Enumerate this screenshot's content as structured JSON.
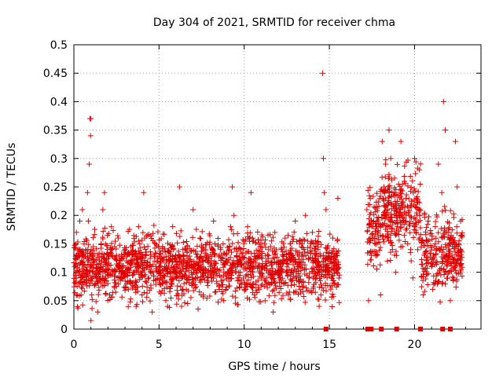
{
  "chart_data": {
    "type": "scatter",
    "title": "Day 304 of 2021, SRMTID for receiver chma",
    "xlabel": "GPS time / hours",
    "ylabel": "SRMTID / TECUs",
    "xlim": [
      0,
      23.9
    ],
    "ylim": [
      0,
      0.5
    ],
    "x_ticks": [
      "0",
      "5",
      "10",
      "15",
      "20"
    ],
    "x_tick_values": [
      0,
      5,
      10,
      15,
      20
    ],
    "y_ticks": [
      "0",
      "0.05",
      "0.1",
      "0.15",
      "0.2",
      "0.25",
      "0.3",
      "0.35",
      "0.4",
      "0.45",
      "0.5"
    ],
    "y_tick_values": [
      0,
      0.05,
      0.1,
      0.15,
      0.2,
      0.25,
      0.3,
      0.35,
      0.4,
      0.45,
      0.5
    ],
    "grid": true,
    "marker": "+",
    "color": "#e00000",
    "segments": [
      {
        "start": 0.0,
        "end": 15.6,
        "center": 0.11,
        "spread": 0.05
      },
      {
        "start": 17.2,
        "end": 18.0,
        "center": 0.18,
        "spread": 0.06
      },
      {
        "start": 18.0,
        "end": 20.4,
        "center": 0.21,
        "spread": 0.07
      },
      {
        "start": 20.4,
        "end": 22.8,
        "center": 0.13,
        "spread": 0.06
      }
    ],
    "series": [
      {
        "name": "SRMTID",
        "points": [
          [
            0.05,
            0.11
          ],
          [
            0.1,
            0.08
          ],
          [
            0.15,
            0.17
          ],
          [
            0.2,
            0.06
          ],
          [
            0.3,
            0.13
          ],
          [
            0.35,
            0.19
          ],
          [
            0.45,
            0.12
          ],
          [
            0.5,
            0.21
          ],
          [
            0.6,
            0.15
          ],
          [
            0.7,
            0.14
          ],
          [
            0.8,
            0.24
          ],
          [
            0.85,
            0.19
          ],
          [
            0.9,
            0.29
          ],
          [
            0.95,
            0.37
          ],
          [
            1.0,
            0.37
          ],
          [
            0.98,
            0.34
          ],
          [
            1.0,
            0.015
          ],
          [
            1.05,
            0.06
          ],
          [
            1.1,
            0.09
          ],
          [
            1.2,
            0.12
          ],
          [
            1.3,
            0.09
          ],
          [
            1.4,
            0.03
          ],
          [
            1.5,
            0.1
          ],
          [
            1.6,
            0.15
          ],
          [
            1.7,
            0.21
          ],
          [
            1.8,
            0.24
          ],
          [
            1.9,
            0.12
          ],
          [
            2.0,
            0.08
          ],
          [
            2.1,
            0.06
          ],
          [
            2.2,
            0.18
          ],
          [
            2.4,
            0.1
          ],
          [
            2.5,
            0.13
          ],
          [
            2.6,
            0.16
          ],
          [
            2.8,
            0.09
          ],
          [
            3.0,
            0.14
          ],
          [
            3.2,
            0.07
          ],
          [
            3.4,
            0.12
          ],
          [
            3.6,
            0.11
          ],
          [
            3.8,
            0.18
          ],
          [
            4.0,
            0.06
          ],
          [
            4.1,
            0.24
          ],
          [
            4.2,
            0.13
          ],
          [
            4.4,
            0.09
          ],
          [
            4.6,
            0.03
          ],
          [
            4.8,
            0.15
          ],
          [
            5.0,
            0.11
          ],
          [
            5.2,
            0.08
          ],
          [
            5.4,
            0.05
          ],
          [
            5.5,
            0.04
          ],
          [
            5.6,
            0.12
          ],
          [
            5.8,
            0.18
          ],
          [
            6.0,
            0.09
          ],
          [
            6.2,
            0.25
          ],
          [
            6.4,
            0.14
          ],
          [
            6.6,
            0.07
          ],
          [
            6.8,
            0.12
          ],
          [
            7.0,
            0.21
          ],
          [
            7.2,
            0.1
          ],
          [
            7.4,
            0.16
          ],
          [
            7.6,
            0.06
          ],
          [
            7.8,
            0.13
          ],
          [
            8.0,
            0.11
          ],
          [
            8.2,
            0.19
          ],
          [
            8.4,
            0.08
          ],
          [
            8.6,
            0.14
          ],
          [
            8.8,
            0.05
          ],
          [
            9.0,
            0.12
          ],
          [
            9.2,
            0.18
          ],
          [
            9.3,
            0.25
          ],
          [
            9.4,
            0.2
          ],
          [
            9.6,
            0.09
          ],
          [
            9.8,
            0.14
          ],
          [
            10.0,
            0.07
          ],
          [
            10.2,
            0.18
          ],
          [
            10.4,
            0.24
          ],
          [
            10.5,
            0.11
          ],
          [
            10.6,
            0.06
          ],
          [
            10.8,
            0.13
          ],
          [
            11.0,
            0.09
          ],
          [
            11.2,
            0.15
          ],
          [
            11.4,
            0.12
          ],
          [
            11.6,
            0.08
          ],
          [
            11.7,
            0.03
          ],
          [
            11.8,
            0.17
          ],
          [
            12.0,
            0.1
          ],
          [
            12.2,
            0.14
          ],
          [
            12.4,
            0.16
          ],
          [
            12.6,
            0.06
          ],
          [
            12.8,
            0.13
          ],
          [
            13.0,
            0.19
          ],
          [
            13.2,
            0.11
          ],
          [
            13.4,
            0.15
          ],
          [
            13.6,
            0.2
          ],
          [
            13.8,
            0.09
          ],
          [
            14.0,
            0.17
          ],
          [
            14.2,
            0.13
          ],
          [
            14.4,
            0.04
          ],
          [
            14.6,
            0.45
          ],
          [
            14.65,
            0.3
          ],
          [
            14.7,
            0.24
          ],
          [
            14.8,
            0.21
          ],
          [
            15.0,
            0.1
          ],
          [
            15.2,
            0.16
          ],
          [
            15.4,
            0.12
          ],
          [
            15.5,
            0.23
          ],
          [
            17.2,
            0.21
          ],
          [
            17.3,
            0.05
          ],
          [
            17.4,
            0.16
          ],
          [
            17.6,
            0.19
          ],
          [
            17.8,
            0.13
          ],
          [
            18.0,
            0.06
          ],
          [
            18.1,
            0.33
          ],
          [
            18.2,
            0.25
          ],
          [
            18.3,
            0.29
          ],
          [
            18.4,
            0.21
          ],
          [
            18.5,
            0.35
          ],
          [
            18.6,
            0.3
          ],
          [
            18.7,
            0.14
          ],
          [
            18.8,
            0.24
          ],
          [
            18.9,
            0.1
          ],
          [
            19.0,
            0.18
          ],
          [
            19.2,
            0.33
          ],
          [
            19.3,
            0.22
          ],
          [
            19.4,
            0.26
          ],
          [
            19.5,
            0.19
          ],
          [
            19.6,
            0.15
          ],
          [
            19.7,
            0.2
          ],
          [
            19.8,
            0.12
          ],
          [
            19.9,
            0.09
          ],
          [
            20.0,
            0.3
          ],
          [
            20.1,
            0.23
          ],
          [
            20.3,
            0.16
          ],
          [
            20.5,
            0.06
          ],
          [
            20.6,
            0.13
          ],
          [
            20.8,
            0.19
          ],
          [
            21.0,
            0.11
          ],
          [
            21.2,
            0.08
          ],
          [
            21.4,
            0.29
          ],
          [
            21.6,
            0.24
          ],
          [
            21.7,
            0.4
          ],
          [
            21.8,
            0.35
          ],
          [
            21.9,
            0.17
          ],
          [
            22.0,
            0.1
          ],
          [
            22.1,
            0.05
          ],
          [
            22.2,
            0.13
          ],
          [
            22.3,
            0.09
          ],
          [
            22.4,
            0.33
          ],
          [
            22.5,
            0.25
          ],
          [
            22.6,
            0.15
          ],
          [
            22.7,
            0.19
          ]
        ]
      },
      {
        "name": "zero-marks",
        "marker": "square",
        "points": [
          [
            14.8,
            0
          ],
          [
            17.25,
            0
          ],
          [
            17.35,
            0
          ],
          [
            17.45,
            0
          ],
          [
            18.05,
            0
          ],
          [
            18.95,
            0
          ],
          [
            20.35,
            0
          ],
          [
            21.65,
            0
          ],
          [
            22.1,
            0
          ]
        ]
      }
    ]
  }
}
